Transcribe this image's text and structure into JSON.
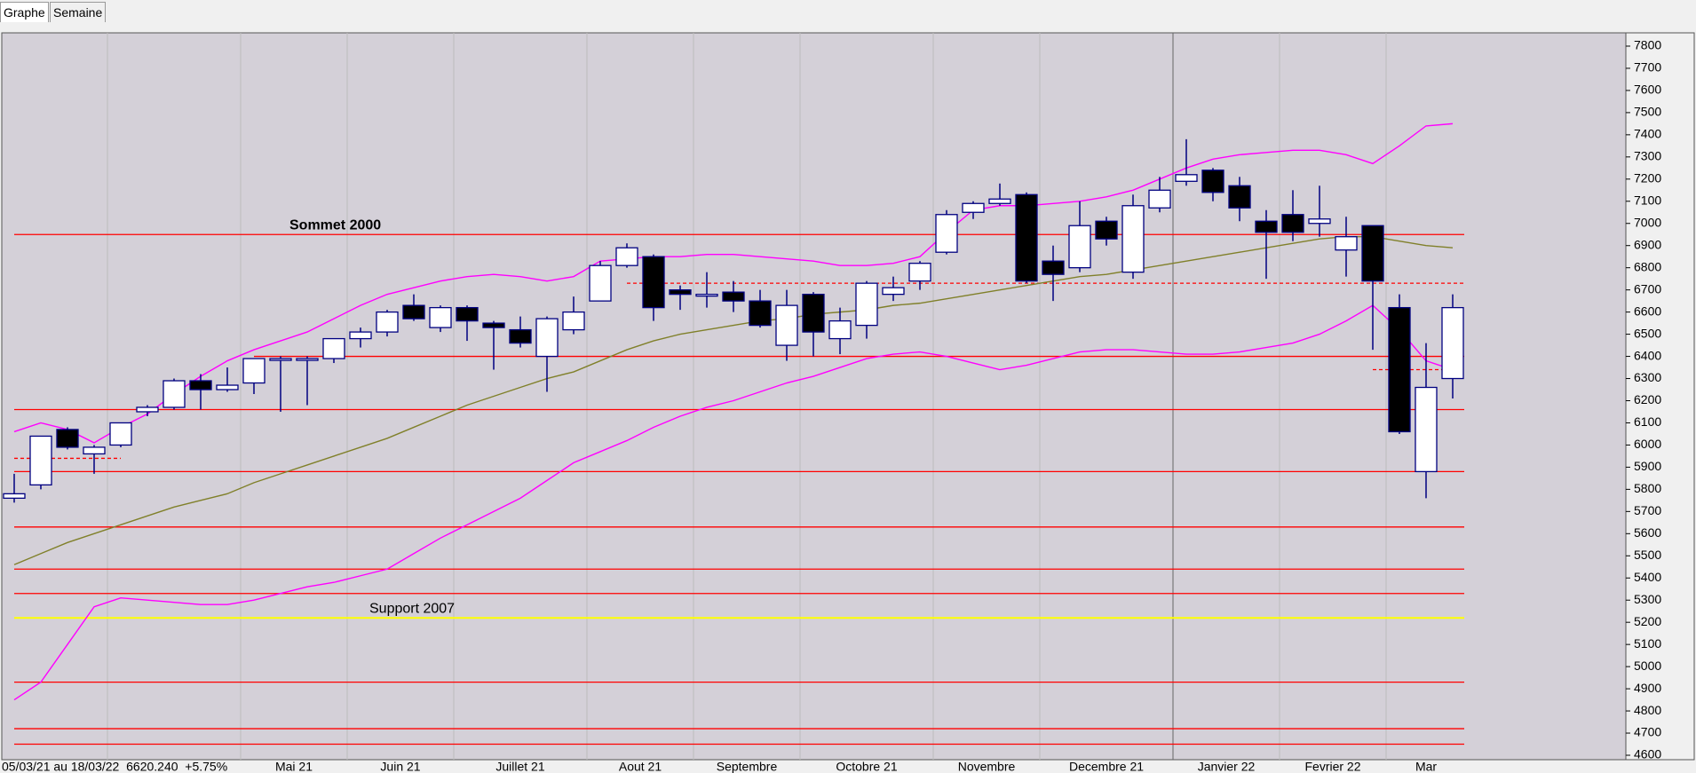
{
  "tabs": [
    "Graphe",
    "Semaine"
  ],
  "chart_data": {
    "type": "candlestick",
    "status": "05/03/21 au 18/03/22  6620.240  +5.75%",
    "annotations": [
      {
        "text": "Sommet 2000",
        "value": 6950,
        "index": 10
      },
      {
        "text": "Support 2007",
        "value": 5220,
        "index": 13
      }
    ],
    "months": [
      {
        "label": null,
        "start": 4
      },
      {
        "label": "Mai 21",
        "start": 9
      },
      {
        "label": "Juin 21",
        "start": 13
      },
      {
        "label": "Juillet 21",
        "start": 17
      },
      {
        "label": "Aout 21",
        "start": 22
      },
      {
        "label": "Septembre",
        "start": 26
      },
      {
        "label": "Octobre 21",
        "start": 30
      },
      {
        "label": "Novembre",
        "start": 35
      },
      {
        "label": "Decembre 21",
        "start": 39
      },
      {
        "label": "Janvier 22",
        "start": 44
      },
      {
        "label": "Fevrier 22",
        "start": 48
      },
      {
        "label": "Mar",
        "start": 52
      }
    ],
    "year_line": 44,
    "open": [
      5760,
      5820,
      6070,
      5960,
      6000,
      6150,
      6170,
      6290,
      6250,
      6280,
      6390,
      6390,
      6390,
      6480,
      6510,
      6630,
      6530,
      6620,
      6550,
      6520,
      6400,
      6520,
      6650,
      6810,
      6850,
      6700,
      6680,
      6690,
      6650,
      6450,
      6680,
      6480,
      6540,
      6680,
      6740,
      6870,
      7050,
      7090,
      7130,
      6830,
      6800,
      7010,
      6780,
      7070,
      7190,
      7240,
      7170,
      7010,
      7040,
      7000,
      6880,
      6990,
      6620,
      5880,
      6300
    ],
    "high": [
      5870,
      6040,
      6080,
      6000,
      6100,
      6180,
      6300,
      6320,
      6350,
      6390,
      6400,
      6400,
      6480,
      6530,
      6610,
      6680,
      6630,
      6630,
      6560,
      6580,
      6580,
      6670,
      6830,
      6910,
      6860,
      6720,
      6780,
      6740,
      6700,
      6700,
      6690,
      6620,
      6740,
      6760,
      6830,
      7060,
      7100,
      7180,
      7140,
      6900,
      7100,
      7030,
      7130,
      7210,
      7380,
      7250,
      7210,
      7060,
      7150,
      7170,
      7030,
      6990,
      6680,
      6460,
      6680
    ],
    "low": [
      5740,
      5800,
      5980,
      5870,
      5990,
      6130,
      6160,
      6160,
      6240,
      6230,
      6150,
      6180,
      6370,
      6440,
      6490,
      6560,
      6510,
      6470,
      6340,
      6440,
      6240,
      6500,
      6650,
      6800,
      6560,
      6610,
      6620,
      6600,
      6530,
      6380,
      6400,
      6410,
      6480,
      6650,
      6700,
      6860,
      7020,
      7080,
      6730,
      6650,
      6780,
      6900,
      6750,
      7050,
      7170,
      7100,
      7010,
      6750,
      6920,
      6940,
      6760,
      6430,
      6050,
      5760,
      6210
    ],
    "close": [
      5780,
      6040,
      5990,
      5990,
      6100,
      6170,
      6290,
      6250,
      6270,
      6390,
      6390,
      6390,
      6480,
      6510,
      6600,
      6570,
      6620,
      6560,
      6530,
      6460,
      6570,
      6600,
      6810,
      6890,
      6620,
      6680,
      6680,
      6650,
      6540,
      6630,
      6510,
      6560,
      6730,
      6710,
      6820,
      7040,
      7090,
      7110,
      6740,
      6770,
      6990,
      6930,
      7080,
      7150,
      7220,
      7140,
      7070,
      6960,
      6960,
      7020,
      6940,
      6740,
      6060,
      6260,
      6620
    ],
    "lines": [
      {
        "color": "#ff00ff",
        "values": [
          6060,
          6100,
          6070,
          6010,
          6080,
          6140,
          6230,
          6310,
          6380,
          6430,
          6470,
          6510,
          6570,
          6630,
          6680,
          6710,
          6740,
          6760,
          6770,
          6760,
          6740,
          6760,
          6830,
          6840,
          6850,
          6850,
          6860,
          6860,
          6850,
          6840,
          6830,
          6810,
          6810,
          6820,
          6850,
          6960,
          7060,
          7080,
          7080,
          7090,
          7100,
          7120,
          7150,
          7200,
          7250,
          7290,
          7310,
          7320,
          7330,
          7330,
          7310,
          7270,
          7350,
          7440,
          7450
        ]
      },
      {
        "color": "#ff00ff",
        "values": [
          4850,
          4930,
          5100,
          5270,
          5310,
          5300,
          5290,
          5280,
          5280,
          5300,
          5330,
          5360,
          5380,
          5410,
          5440,
          5510,
          5580,
          5640,
          5700,
          5760,
          5840,
          5920,
          5970,
          6020,
          6080,
          6130,
          6170,
          6200,
          6240,
          6280,
          6310,
          6350,
          6390,
          6410,
          6420,
          6400,
          6370,
          6340,
          6360,
          6390,
          6420,
          6430,
          6430,
          6420,
          6410,
          6410,
          6420,
          6440,
          6460,
          6500,
          6560,
          6630,
          6520,
          6380,
          6340
        ]
      },
      {
        "color": "#80802a",
        "values": [
          5460,
          5510,
          5560,
          5600,
          5640,
          5680,
          5720,
          5750,
          5780,
          5830,
          5870,
          5910,
          5950,
          5990,
          6030,
          6080,
          6130,
          6180,
          6220,
          6260,
          6300,
          6330,
          6380,
          6430,
          6470,
          6500,
          6520,
          6540,
          6560,
          6570,
          6590,
          6600,
          6610,
          6630,
          6640,
          6660,
          6680,
          6700,
          6720,
          6740,
          6760,
          6770,
          6790,
          6810,
          6830,
          6850,
          6870,
          6890,
          6910,
          6930,
          6940,
          6940,
          6920,
          6900,
          6890
        ]
      }
    ],
    "levels": [
      {
        "value": 6950,
        "color": "#ff0000"
      },
      {
        "value": 6730,
        "color": "#ff0000",
        "dashed": true
      },
      {
        "value": 6400,
        "color": "#ff0000"
      },
      {
        "value": 6340,
        "color": "#ff0000",
        "dashed": true
      },
      {
        "value": 6160,
        "color": "#ff0000"
      },
      {
        "value": 5940,
        "color": "#ff0000",
        "dashed": true
      },
      {
        "value": 5880,
        "color": "#ff0000"
      },
      {
        "value": 5630,
        "color": "#ff0000"
      },
      {
        "value": 5440,
        "color": "#ff0000"
      },
      {
        "value": 5330,
        "color": "#ff0000"
      },
      {
        "value": 5220,
        "color": "#ffff00"
      },
      {
        "value": 4930,
        "color": "#ff0000"
      },
      {
        "value": 4720,
        "color": "#ff0000"
      },
      {
        "value": 4650,
        "color": "#ff0000"
      }
    ],
    "ylim": [
      4580,
      7860
    ],
    "yticks": [
      4600,
      4700,
      4800,
      4900,
      5000,
      5100,
      5200,
      5300,
      5400,
      5500,
      5600,
      5700,
      5800,
      5900,
      6000,
      6100,
      6200,
      6300,
      6400,
      6500,
      6600,
      6700,
      6800,
      6900,
      7000,
      7100,
      7200,
      7300,
      7400,
      7500,
      7600,
      7700,
      7800
    ]
  }
}
